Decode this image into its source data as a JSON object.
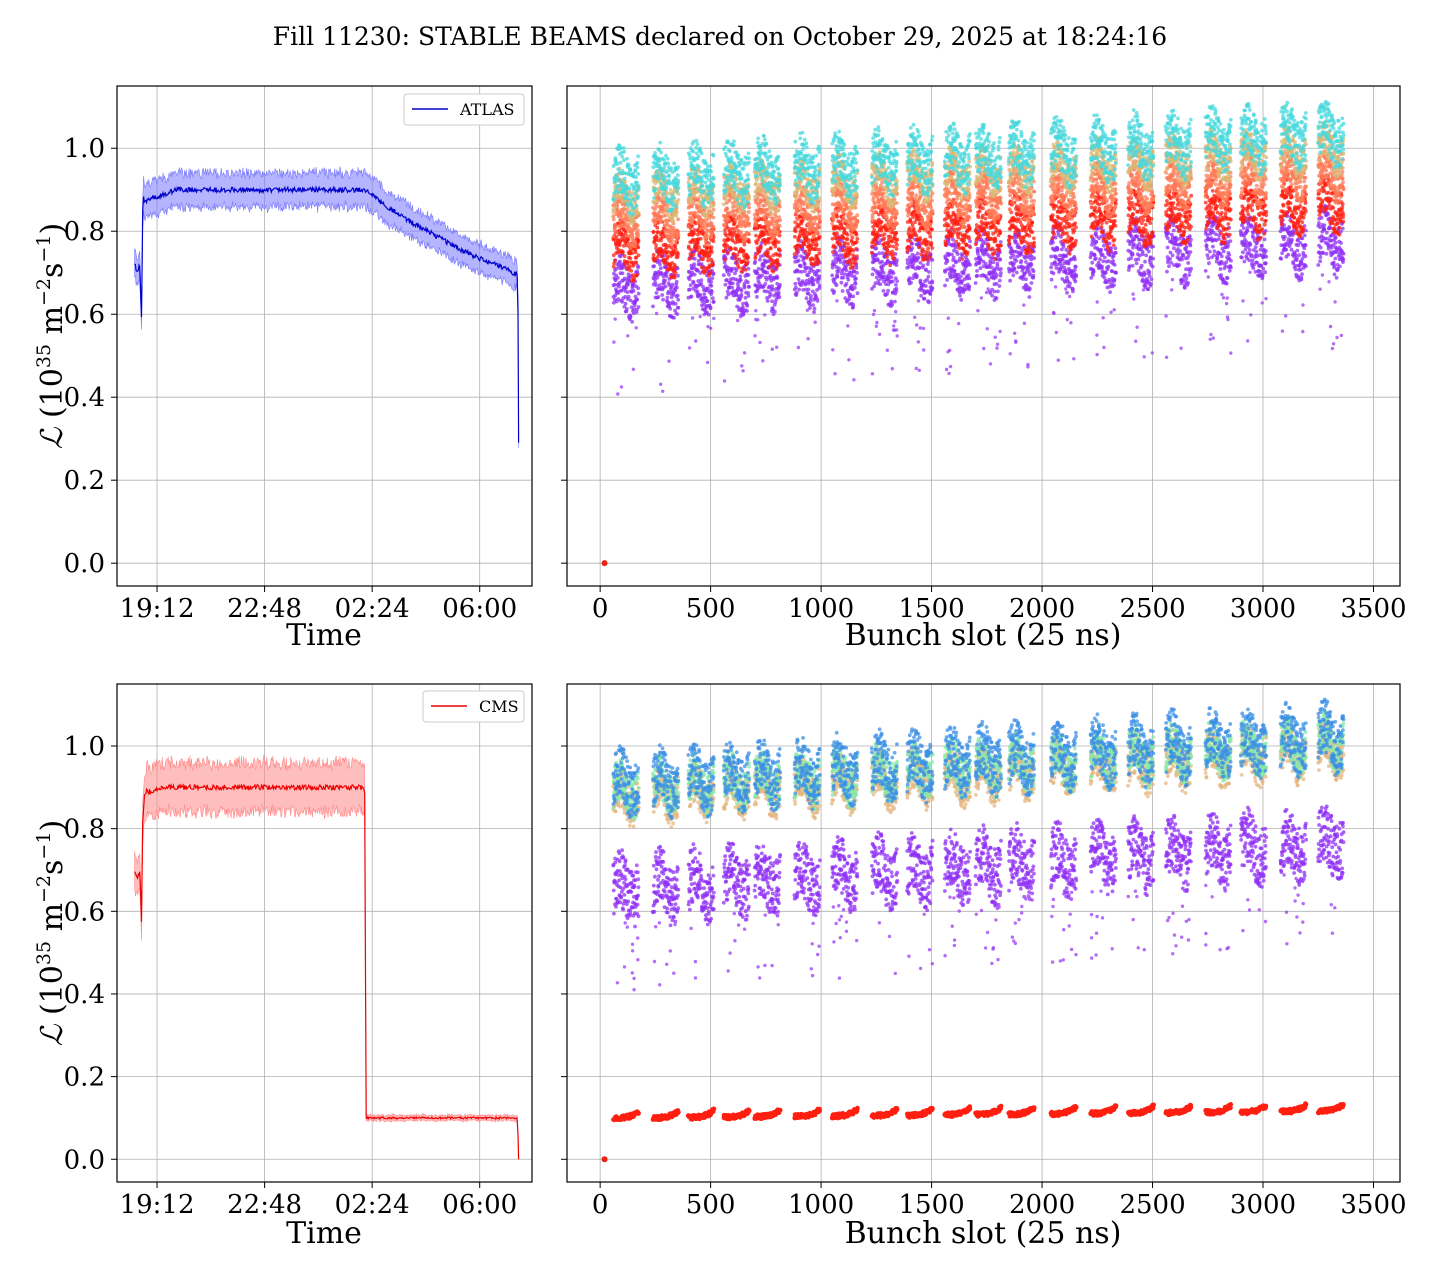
{
  "figure": {
    "title": "Fill 11230: STABLE BEAMS declared on October 29, 2025 at 18:24:16"
  },
  "ylabel": {
    "symbol": "ℒ",
    "open": " (10",
    "exp1": "35",
    "mid": " m",
    "exp2": "−2",
    "s": "s",
    "exp3": "−1",
    "close": ")"
  },
  "chart_data": [
    {
      "id": "atlas-time",
      "type": "line",
      "experiment": "ATLAS",
      "xlabel": "Time",
      "x_ticks": [
        "19:12",
        "22:48",
        "02:24",
        "06:00"
      ],
      "x_tick_hours": [
        19.2,
        22.8,
        26.4,
        30.0
      ],
      "x_range_hours": [
        17.86,
        31.75
      ],
      "ylim": [
        -0.055,
        1.15
      ],
      "y_ticks": [
        "0.0",
        "0.2",
        "0.4",
        "0.6",
        "0.8",
        "1.0"
      ],
      "legend": {
        "label": "ATLAS",
        "placement": "upper right"
      },
      "color": "#0000cc",
      "band_color": "#7777ff",
      "band_halfwidth_frac": 0.045,
      "series": {
        "x_hours": [
          18.45,
          18.55,
          18.62,
          18.68,
          18.72,
          18.75,
          18.8,
          18.9,
          19.0,
          19.3,
          19.5,
          19.8,
          20.3,
          21.0,
          22.0,
          23.0,
          24.0,
          25.0,
          25.5,
          26.0,
          26.3,
          26.6,
          27.0,
          27.5,
          28.0,
          28.5,
          29.0,
          29.5,
          30.0,
          30.5,
          31.0,
          31.25,
          31.28,
          31.3
        ],
        "y": [
          0.72,
          0.7,
          0.72,
          0.59,
          0.85,
          0.88,
          0.87,
          0.88,
          0.88,
          0.885,
          0.89,
          0.9,
          0.9,
          0.9,
          0.9,
          0.9,
          0.9,
          0.9,
          0.9,
          0.9,
          0.895,
          0.875,
          0.855,
          0.83,
          0.81,
          0.79,
          0.77,
          0.75,
          0.735,
          0.72,
          0.705,
          0.695,
          0.62,
          0.29
        ]
      }
    },
    {
      "id": "atlas-bunch",
      "type": "scatter",
      "experiment": "ATLAS",
      "xlabel": "Bunch slot (25 ns)",
      "xlim": [
        -150,
        3620
      ],
      "x_ticks": [
        0,
        500,
        1000,
        1500,
        2000,
        2500,
        3000,
        3500
      ],
      "ylim": [
        -0.055,
        1.15
      ],
      "colormap": "rainbow (time order: violet early → red late)",
      "trains_start": [
        60,
        240,
        400,
        560,
        700,
        880,
        1050,
        1230,
        1390,
        1560,
        1700,
        1850,
        2040,
        2220,
        2390,
        2560,
        2740,
        2900,
        3080,
        3250
      ],
      "train_length": 115,
      "first_slot": 60,
      "last_slot": 3430,
      "groups": [
        {
          "name": "violet",
          "color": "#8f2ff5",
          "y_range": [
            0.6,
            0.72
          ]
        },
        {
          "name": "red",
          "color": "#ff1f10",
          "y_range": [
            0.7,
            0.8
          ]
        },
        {
          "name": "orange",
          "color": "#ff7a55",
          "y_range": [
            0.78,
            0.86
          ]
        },
        {
          "name": "tan",
          "color": "#d9b875",
          "y_range": [
            0.84,
            0.92
          ]
        },
        {
          "name": "cyan",
          "color": "#47d8de",
          "y_range": [
            0.86,
            0.98
          ]
        }
      ],
      "low_outliers_y": [
        0.4,
        0.6
      ],
      "slope_per_1000_slots": 0.035,
      "isolated_point": {
        "x": 20,
        "y": 0.0
      }
    },
    {
      "id": "cms-time",
      "type": "line",
      "experiment": "CMS",
      "xlabel": "Time",
      "x_ticks": [
        "19:12",
        "22:48",
        "02:24",
        "06:00"
      ],
      "x_tick_hours": [
        19.2,
        22.8,
        26.4,
        30.0
      ],
      "x_range_hours": [
        17.86,
        31.75
      ],
      "ylim": [
        -0.055,
        1.15
      ],
      "y_ticks": [
        "0.0",
        "0.2",
        "0.4",
        "0.6",
        "0.8",
        "1.0"
      ],
      "legend": {
        "label": "CMS",
        "placement": "upper right"
      },
      "color": "#ee0000",
      "band_color": "#ff8888",
      "band_halfwidth_frac": 0.065,
      "series": {
        "x_hours": [
          18.45,
          18.55,
          18.62,
          18.68,
          18.72,
          18.78,
          18.85,
          19.0,
          19.3,
          19.6,
          20.0,
          21.0,
          22.0,
          23.0,
          24.0,
          25.0,
          25.5,
          26.0,
          26.1,
          26.15,
          26.2,
          26.4,
          27.0,
          28.0,
          29.0,
          30.0,
          31.0,
          31.25,
          31.28,
          31.3
        ],
        "y": [
          0.7,
          0.68,
          0.7,
          0.58,
          0.82,
          0.88,
          0.89,
          0.89,
          0.9,
          0.9,
          0.9,
          0.9,
          0.9,
          0.9,
          0.9,
          0.9,
          0.9,
          0.9,
          0.895,
          0.89,
          0.1,
          0.1,
          0.1,
          0.1,
          0.1,
          0.1,
          0.1,
          0.1,
          0.06,
          0.0
        ]
      }
    },
    {
      "id": "cms-bunch",
      "type": "scatter",
      "experiment": "CMS",
      "xlabel": "Bunch slot (25 ns)",
      "xlim": [
        -150,
        3620
      ],
      "x_ticks": [
        0,
        500,
        1000,
        1500,
        2000,
        2500,
        3000,
        3500
      ],
      "ylim": [
        -0.055,
        1.15
      ],
      "colormap": "rainbow (time order: violet early → red late)",
      "trains_start": [
        60,
        240,
        400,
        560,
        700,
        880,
        1050,
        1230,
        1390,
        1560,
        1700,
        1850,
        2040,
        2220,
        2390,
        2560,
        2740,
        2900,
        3080,
        3250
      ],
      "train_length": 115,
      "first_slot": 60,
      "last_slot": 3430,
      "groups": [
        {
          "name": "violet",
          "color": "#8f2ff5",
          "y_range": [
            0.58,
            0.72
          ]
        },
        {
          "name": "tan",
          "color": "#e5b780",
          "y_range": [
            0.82,
            0.92
          ]
        },
        {
          "name": "green",
          "color": "#86e8a8",
          "y_range": [
            0.84,
            0.94
          ]
        },
        {
          "name": "blue",
          "color": "#3b8fe6",
          "y_range": [
            0.84,
            0.97
          ]
        },
        {
          "name": "red",
          "color": "#ff1f10",
          "y_range": [
            0.085,
            0.125
          ]
        }
      ],
      "low_outliers_y": [
        0.4,
        0.58
      ],
      "slope_per_1000_slots": 0.035,
      "isolated_point": {
        "x": 20,
        "y": 0.0
      }
    }
  ]
}
